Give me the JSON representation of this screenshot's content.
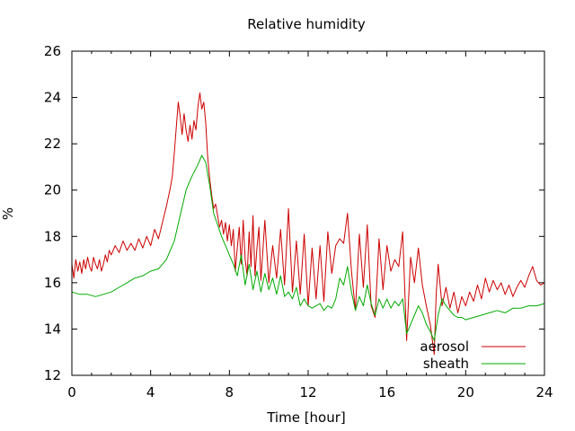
{
  "chart_data": {
    "type": "line",
    "title": "Relative humidity",
    "xlabel": "Time [hour]",
    "ylabel": "%",
    "xlim": [
      0,
      24
    ],
    "ylim": [
      12,
      26
    ],
    "x_ticks": [
      0,
      4,
      8,
      12,
      16,
      20,
      24
    ],
    "y_ticks": [
      12,
      14,
      16,
      18,
      20,
      22,
      24,
      26
    ],
    "grid": false,
    "legend_position": "bottom-right",
    "series": [
      {
        "name": "aerosol",
        "color": "#cc0000",
        "points": [
          [
            0.0,
            16.8
          ],
          [
            0.1,
            16.2
          ],
          [
            0.2,
            17.0
          ],
          [
            0.3,
            16.5
          ],
          [
            0.4,
            16.9
          ],
          [
            0.5,
            16.4
          ],
          [
            0.6,
            17.0
          ],
          [
            0.7,
            16.6
          ],
          [
            0.8,
            17.1
          ],
          [
            0.9,
            16.7
          ],
          [
            1.0,
            16.5
          ],
          [
            1.1,
            17.1
          ],
          [
            1.2,
            16.8
          ],
          [
            1.3,
            16.6
          ],
          [
            1.4,
            17.0
          ],
          [
            1.5,
            16.5
          ],
          [
            1.6,
            16.8
          ],
          [
            1.7,
            17.2
          ],
          [
            1.8,
            16.9
          ],
          [
            1.9,
            17.4
          ],
          [
            2.0,
            17.2
          ],
          [
            2.2,
            17.6
          ],
          [
            2.4,
            17.3
          ],
          [
            2.6,
            17.8
          ],
          [
            2.8,
            17.4
          ],
          [
            3.0,
            17.7
          ],
          [
            3.2,
            17.4
          ],
          [
            3.4,
            17.9
          ],
          [
            3.6,
            17.5
          ],
          [
            3.8,
            18.0
          ],
          [
            4.0,
            17.6
          ],
          [
            4.2,
            18.3
          ],
          [
            4.4,
            17.9
          ],
          [
            4.6,
            18.6
          ],
          [
            4.8,
            19.3
          ],
          [
            5.0,
            20.1
          ],
          [
            5.1,
            20.6
          ],
          [
            5.2,
            21.6
          ],
          [
            5.3,
            22.7
          ],
          [
            5.4,
            23.8
          ],
          [
            5.5,
            23.2
          ],
          [
            5.6,
            22.4
          ],
          [
            5.7,
            23.3
          ],
          [
            5.8,
            22.6
          ],
          [
            5.9,
            22.1
          ],
          [
            6.0,
            22.8
          ],
          [
            6.1,
            22.2
          ],
          [
            6.2,
            23.0
          ],
          [
            6.3,
            22.6
          ],
          [
            6.4,
            23.6
          ],
          [
            6.5,
            24.2
          ],
          [
            6.6,
            23.5
          ],
          [
            6.7,
            23.8
          ],
          [
            6.8,
            22.9
          ],
          [
            6.9,
            21.4
          ],
          [
            7.0,
            20.5
          ],
          [
            7.1,
            19.8
          ],
          [
            7.2,
            19.2
          ],
          [
            7.3,
            19.4
          ],
          [
            7.4,
            18.9
          ],
          [
            7.5,
            18.4
          ],
          [
            7.6,
            18.7
          ],
          [
            7.7,
            18.1
          ],
          [
            7.8,
            18.6
          ],
          [
            7.9,
            17.8
          ],
          [
            8.0,
            18.5
          ],
          [
            8.1,
            17.6
          ],
          [
            8.2,
            18.3
          ],
          [
            8.3,
            16.5
          ],
          [
            8.4,
            17.5
          ],
          [
            8.5,
            18.4
          ],
          [
            8.6,
            16.8
          ],
          [
            8.7,
            18.7
          ],
          [
            8.8,
            17.0
          ],
          [
            8.9,
            16.3
          ],
          [
            9.0,
            18.2
          ],
          [
            9.1,
            16.7
          ],
          [
            9.2,
            18.9
          ],
          [
            9.3,
            16.3
          ],
          [
            9.4,
            17.5
          ],
          [
            9.5,
            18.4
          ],
          [
            9.6,
            16.1
          ],
          [
            9.8,
            18.7
          ],
          [
            10.0,
            16.0
          ],
          [
            10.2,
            17.6
          ],
          [
            10.4,
            16.2
          ],
          [
            10.6,
            18.3
          ],
          [
            10.8,
            15.9
          ],
          [
            11.0,
            19.2
          ],
          [
            11.2,
            15.6
          ],
          [
            11.4,
            17.8
          ],
          [
            11.6,
            15.5
          ],
          [
            11.8,
            18.1
          ],
          [
            12.0,
            15.0
          ],
          [
            12.2,
            17.5
          ],
          [
            12.4,
            15.3
          ],
          [
            12.6,
            17.6
          ],
          [
            12.8,
            15.2
          ],
          [
            13.0,
            18.2
          ],
          [
            13.2,
            16.4
          ],
          [
            13.4,
            17.6
          ],
          [
            13.6,
            17.9
          ],
          [
            13.8,
            17.7
          ],
          [
            14.0,
            19.0
          ],
          [
            14.2,
            16.5
          ],
          [
            14.4,
            14.8
          ],
          [
            14.6,
            18.1
          ],
          [
            14.8,
            15.8
          ],
          [
            15.0,
            18.5
          ],
          [
            15.2,
            15.0
          ],
          [
            15.4,
            14.5
          ],
          [
            15.6,
            17.9
          ],
          [
            15.8,
            15.7
          ],
          [
            16.0,
            17.6
          ],
          [
            16.2,
            16.5
          ],
          [
            16.4,
            17.0
          ],
          [
            16.6,
            16.7
          ],
          [
            16.8,
            18.2
          ],
          [
            17.0,
            13.5
          ],
          [
            17.2,
            17.1
          ],
          [
            17.4,
            16.0
          ],
          [
            17.6,
            17.5
          ],
          [
            17.8,
            15.9
          ],
          [
            18.0,
            15.0
          ],
          [
            18.2,
            14.2
          ],
          [
            18.4,
            12.9
          ],
          [
            18.5,
            15.5
          ],
          [
            18.6,
            16.8
          ],
          [
            18.8,
            15.0
          ],
          [
            19.0,
            15.8
          ],
          [
            19.2,
            14.9
          ],
          [
            19.4,
            15.6
          ],
          [
            19.6,
            14.7
          ],
          [
            19.8,
            15.4
          ],
          [
            20.0,
            15.0
          ],
          [
            20.2,
            15.6
          ],
          [
            20.4,
            15.2
          ],
          [
            20.6,
            15.9
          ],
          [
            20.8,
            15.3
          ],
          [
            21.0,
            16.2
          ],
          [
            21.2,
            15.6
          ],
          [
            21.4,
            16.1
          ],
          [
            21.6,
            15.7
          ],
          [
            21.8,
            16.0
          ],
          [
            22.0,
            15.5
          ],
          [
            22.2,
            15.9
          ],
          [
            22.4,
            15.4
          ],
          [
            22.6,
            15.8
          ],
          [
            22.8,
            16.1
          ],
          [
            23.0,
            15.8
          ],
          [
            23.2,
            16.3
          ],
          [
            23.4,
            16.7
          ],
          [
            23.6,
            16.1
          ],
          [
            23.8,
            15.9
          ],
          [
            24.0,
            16.0
          ]
        ]
      },
      {
        "name": "sheath",
        "color": "#00aa00",
        "points": [
          [
            0.0,
            15.6
          ],
          [
            0.4,
            15.5
          ],
          [
            0.8,
            15.5
          ],
          [
            1.2,
            15.4
          ],
          [
            1.6,
            15.5
          ],
          [
            2.0,
            15.6
          ],
          [
            2.4,
            15.8
          ],
          [
            2.8,
            16.0
          ],
          [
            3.2,
            16.2
          ],
          [
            3.6,
            16.3
          ],
          [
            4.0,
            16.5
          ],
          [
            4.4,
            16.6
          ],
          [
            4.8,
            17.0
          ],
          [
            5.2,
            17.8
          ],
          [
            5.5,
            18.9
          ],
          [
            5.8,
            20.0
          ],
          [
            6.1,
            20.6
          ],
          [
            6.4,
            21.1
          ],
          [
            6.6,
            21.5
          ],
          [
            6.8,
            21.2
          ],
          [
            7.0,
            20.2
          ],
          [
            7.2,
            19.0
          ],
          [
            7.4,
            18.5
          ],
          [
            7.6,
            18.0
          ],
          [
            7.8,
            17.6
          ],
          [
            8.0,
            17.2
          ],
          [
            8.2,
            16.8
          ],
          [
            8.4,
            16.3
          ],
          [
            8.6,
            17.2
          ],
          [
            8.8,
            15.9
          ],
          [
            9.0,
            16.8
          ],
          [
            9.2,
            15.7
          ],
          [
            9.4,
            16.5
          ],
          [
            9.6,
            15.6
          ],
          [
            9.8,
            16.4
          ],
          [
            10.0,
            15.7
          ],
          [
            10.2,
            16.2
          ],
          [
            10.4,
            15.5
          ],
          [
            10.6,
            16.3
          ],
          [
            10.8,
            15.4
          ],
          [
            11.0,
            15.6
          ],
          [
            11.2,
            15.3
          ],
          [
            11.4,
            15.8
          ],
          [
            11.6,
            15.0
          ],
          [
            11.8,
            15.3
          ],
          [
            12.0,
            15.0
          ],
          [
            12.2,
            14.9
          ],
          [
            12.4,
            15.0
          ],
          [
            12.6,
            15.1
          ],
          [
            12.8,
            14.8
          ],
          [
            13.0,
            15.0
          ],
          [
            13.2,
            14.9
          ],
          [
            13.4,
            15.3
          ],
          [
            13.6,
            16.2
          ],
          [
            13.8,
            15.9
          ],
          [
            14.0,
            16.7
          ],
          [
            14.2,
            15.6
          ],
          [
            14.4,
            14.8
          ],
          [
            14.6,
            15.4
          ],
          [
            14.8,
            15.0
          ],
          [
            15.0,
            15.9
          ],
          [
            15.2,
            15.1
          ],
          [
            15.4,
            14.6
          ],
          [
            15.6,
            15.3
          ],
          [
            15.8,
            14.9
          ],
          [
            16.0,
            15.3
          ],
          [
            16.2,
            14.9
          ],
          [
            16.4,
            15.2
          ],
          [
            16.6,
            15.0
          ],
          [
            16.8,
            15.3
          ],
          [
            17.0,
            13.8
          ],
          [
            17.2,
            14.2
          ],
          [
            17.4,
            14.6
          ],
          [
            17.6,
            15.0
          ],
          [
            17.8,
            14.7
          ],
          [
            18.0,
            14.2
          ],
          [
            18.2,
            13.9
          ],
          [
            18.4,
            13.5
          ],
          [
            18.6,
            14.6
          ],
          [
            18.8,
            15.3
          ],
          [
            19.0,
            15.0
          ],
          [
            19.2,
            14.8
          ],
          [
            19.4,
            14.6
          ],
          [
            19.6,
            14.5
          ],
          [
            19.8,
            14.5
          ],
          [
            20.0,
            14.4
          ],
          [
            20.4,
            14.5
          ],
          [
            20.8,
            14.6
          ],
          [
            21.2,
            14.7
          ],
          [
            21.6,
            14.8
          ],
          [
            22.0,
            14.7
          ],
          [
            22.4,
            14.9
          ],
          [
            22.8,
            14.9
          ],
          [
            23.2,
            15.0
          ],
          [
            23.6,
            15.0
          ],
          [
            24.0,
            15.1
          ]
        ]
      }
    ]
  }
}
